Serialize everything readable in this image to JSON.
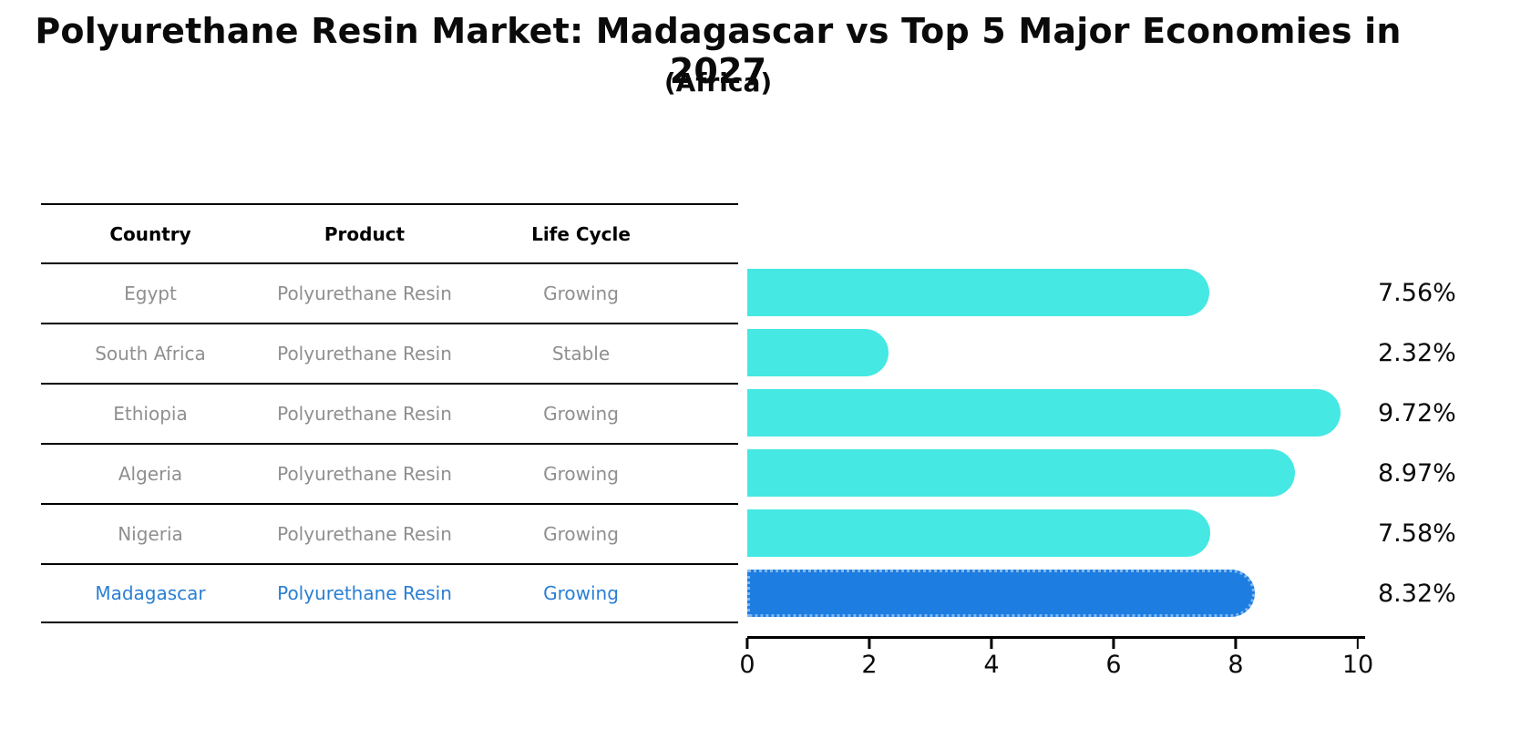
{
  "title": "Polyurethane Resin Market: Madagascar vs Top 5 Major Economies in 2027",
  "subtitle": "(Africa)",
  "table": {
    "headers": [
      "Country",
      "Product",
      "Life Cycle"
    ],
    "rows": [
      {
        "country": "Egypt",
        "product": "Polyurethane Resin",
        "life_cycle": "Growing",
        "highlight": false
      },
      {
        "country": "South Africa",
        "product": "Polyurethane Resin",
        "life_cycle": "Stable",
        "highlight": false
      },
      {
        "country": "Ethiopia",
        "product": "Polyurethane Resin",
        "life_cycle": "Growing",
        "highlight": false
      },
      {
        "country": "Algeria",
        "product": "Polyurethane Resin",
        "life_cycle": "Growing",
        "highlight": false
      },
      {
        "country": "Nigeria",
        "product": "Polyurethane Resin",
        "life_cycle": "Growing",
        "highlight": false
      },
      {
        "country": "Madagascar",
        "product": "Polyurethane Resin",
        "life_cycle": "Growing",
        "highlight": true
      }
    ]
  },
  "chart_data": {
    "type": "bar",
    "orientation": "horizontal",
    "title": "Polyurethane Resin Market: Madagascar vs Top 5 Major Economies in 2027",
    "subtitle": "(Africa)",
    "categories": [
      "Egypt",
      "South Africa",
      "Ethiopia",
      "Algeria",
      "Nigeria",
      "Madagascar"
    ],
    "values": [
      7.56,
      2.32,
      9.72,
      8.97,
      7.58,
      8.32
    ],
    "value_labels": [
      "7.56%",
      "2.32%",
      "9.72%",
      "8.97%",
      "7.58%",
      "8.32%"
    ],
    "xlabel": "",
    "ylabel": "",
    "xlim": [
      0,
      10
    ],
    "x_ticks": [
      "0",
      "2",
      "4",
      "6",
      "8",
      "10"
    ],
    "grid": false,
    "legend_position": "none",
    "bar_color": "#45E8E3",
    "highlight_color": "#1E7DE1",
    "highlight_border_color": "#7FB8EF",
    "highlight_index": 5
  },
  "colors": {
    "row_text": "#8f8f8f",
    "highlight_text": "#2A7FD4",
    "header_text": "#000000",
    "axis_color": "#000000"
  }
}
